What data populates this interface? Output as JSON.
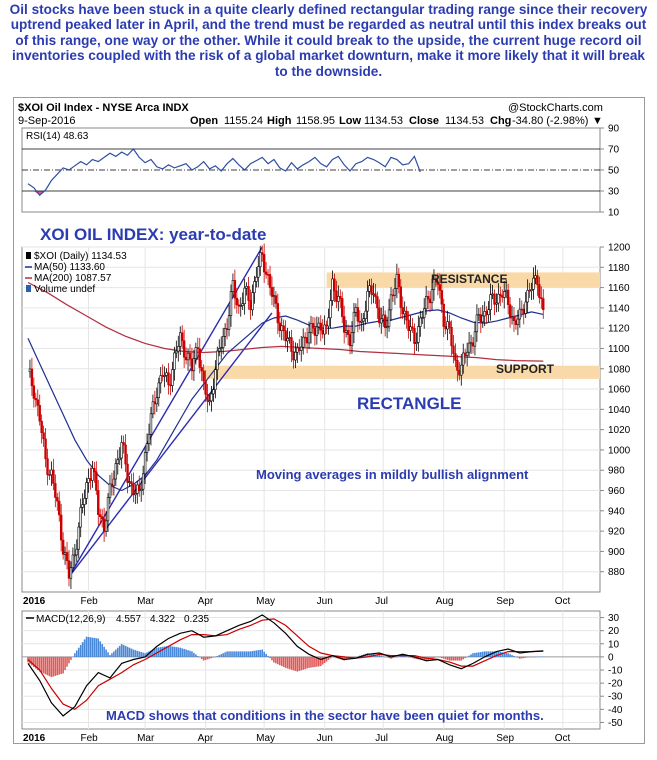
{
  "intro_text": "Oil stocks have been stuck in a quite clearly defined rectangular trading range since their recovery uptrend peaked later in April, and the trend must be regarded as neutral until this index breaks out of this range, one way or the other. While it could break to the upside, the current huge record oil inventories coupled with the risk of a global market downturn, make it more likely that it will break to the downside.",
  "header": {
    "symbol": "$XOI Oil Index - NYSE Arca INDX",
    "date": "9-Sep-2016",
    "open_label": "Open",
    "open": "1155.24",
    "high_label": "High",
    "high": "1158.95",
    "low_label": "Low",
    "low": "1134.53",
    "close_label": "Close",
    "close": "1134.53",
    "chg_label": "Chg",
    "chg": "-34.80 (-2.98%)",
    "source": "@StockCharts.com"
  },
  "colors": {
    "price_up": "#000000",
    "price_down": "#cc0000",
    "ma50": "#1f2f8f",
    "ma200": "#b03040",
    "rsi": "#2f4f9f",
    "macd": "#000000",
    "signal": "#cc0000",
    "hist_pos": "#4a88d8",
    "hist_neg": "#e05a5a",
    "band": "#f9d9a8",
    "channel": "#2b2bb0"
  },
  "chart_data": [
    {
      "panel": "rsi",
      "type": "line",
      "legend": "RSI(14) 48.63",
      "ylim": [
        10,
        90
      ],
      "yticks": [
        10,
        30,
        50,
        70,
        90
      ],
      "reference_lines": [
        30,
        50,
        70
      ],
      "points": [
        [
          0,
          37
        ],
        [
          3,
          33
        ],
        [
          6,
          26
        ],
        [
          9,
          31
        ],
        [
          12,
          40
        ],
        [
          15,
          46
        ],
        [
          18,
          52
        ],
        [
          21,
          50
        ],
        [
          24,
          54
        ],
        [
          27,
          58
        ],
        [
          30,
          55
        ],
        [
          33,
          60
        ],
        [
          36,
          58
        ],
        [
          39,
          62
        ],
        [
          42,
          66
        ],
        [
          45,
          63
        ],
        [
          48,
          67
        ],
        [
          51,
          64
        ],
        [
          54,
          70
        ],
        [
          57,
          62
        ],
        [
          60,
          57
        ],
        [
          63,
          60
        ],
        [
          66,
          53
        ],
        [
          69,
          51
        ],
        [
          72,
          55
        ],
        [
          75,
          52
        ],
        [
          78,
          54
        ],
        [
          81,
          56
        ],
        [
          84,
          50
        ],
        [
          87,
          53
        ],
        [
          90,
          58
        ],
        [
          93,
          51
        ],
        [
          96,
          54
        ],
        [
          99,
          49
        ],
        [
          102,
          56
        ],
        [
          105,
          61
        ],
        [
          108,
          55
        ],
        [
          111,
          50
        ],
        [
          114,
          56
        ],
        [
          117,
          59
        ],
        [
          120,
          62
        ],
        [
          123,
          56
        ],
        [
          126,
          60
        ],
        [
          129,
          52
        ],
        [
          132,
          49
        ],
        [
          135,
          57
        ],
        [
          138,
          51
        ],
        [
          141,
          55
        ],
        [
          144,
          58
        ],
        [
          147,
          62
        ],
        [
          150,
          56
        ],
        [
          153,
          53
        ],
        [
          156,
          60
        ],
        [
          159,
          63
        ],
        [
          162,
          55
        ],
        [
          165,
          49
        ],
        [
          168,
          56
        ],
        [
          171,
          58
        ],
        [
          174,
          62
        ],
        [
          177,
          60
        ],
        [
          180,
          57
        ],
        [
          183,
          53
        ],
        [
          186,
          62
        ],
        [
          189,
          60
        ],
        [
          192,
          55
        ],
        [
          195,
          56
        ],
        [
          198,
          63
        ],
        [
          201,
          48
        ]
      ]
    },
    {
      "panel": "price",
      "type": "candlestick",
      "title": "XOI OIL INDEX: year-to-date",
      "legend": [
        "$XOI (Daily) 1134.53",
        "MA(50) 1133.60",
        "MA(200) 1087.57",
        "Volume undef"
      ],
      "ylim": [
        860,
        1200
      ],
      "yticks": [
        880,
        900,
        920,
        940,
        960,
        980,
        1000,
        1020,
        1040,
        1060,
        1080,
        1100,
        1120,
        1140,
        1160,
        1180,
        1200
      ],
      "x_axis": {
        "start_label": "2016",
        "months": [
          {
            "label": "Feb",
            "day": 31
          },
          {
            "label": "Mar",
            "day": 60
          },
          {
            "label": "Apr",
            "day": 91
          },
          {
            "label": "May",
            "day": 121
          },
          {
            "label": "Jun",
            "day": 152
          },
          {
            "label": "Jul",
            "day": 182
          },
          {
            "label": "Aug",
            "day": 213
          },
          {
            "label": "Sep",
            "day": 244
          },
          {
            "label": "Oct",
            "day": 274
          }
        ],
        "end_day": 290
      },
      "close_series": [
        [
          0,
          1077
        ],
        [
          3,
          1060
        ],
        [
          6,
          1030
        ],
        [
          9,
          990
        ],
        [
          12,
          975
        ],
        [
          15,
          945
        ],
        [
          18,
          905
        ],
        [
          21,
          875
        ],
        [
          24,
          900
        ],
        [
          27,
          935
        ],
        [
          30,
          965
        ],
        [
          33,
          985
        ],
        [
          36,
          940
        ],
        [
          39,
          925
        ],
        [
          42,
          958
        ],
        [
          45,
          985
        ],
        [
          48,
          1005
        ],
        [
          51,
          975
        ],
        [
          54,
          960
        ],
        [
          57,
          955
        ],
        [
          60,
          995
        ],
        [
          63,
          1030
        ],
        [
          66,
          1060
        ],
        [
          69,
          1075
        ],
        [
          72,
          1065
        ],
        [
          75,
          1090
        ],
        [
          78,
          1110
        ],
        [
          81,
          1095
        ],
        [
          84,
          1080
        ],
        [
          87,
          1105
        ],
        [
          90,
          1060
        ],
        [
          93,
          1045
        ],
        [
          96,
          1080
        ],
        [
          99,
          1105
        ],
        [
          102,
          1125
        ],
        [
          105,
          1160
        ],
        [
          108,
          1140
        ],
        [
          111,
          1155
        ],
        [
          114,
          1145
        ],
        [
          117,
          1175
        ],
        [
          120,
          1190
        ],
        [
          123,
          1170
        ],
        [
          126,
          1145
        ],
        [
          129,
          1125
        ],
        [
          132,
          1110
        ],
        [
          135,
          1100
        ],
        [
          138,
          1095
        ],
        [
          141,
          1105
        ],
        [
          144,
          1120
        ],
        [
          147,
          1115
        ],
        [
          150,
          1125
        ],
        [
          153,
          1115
        ],
        [
          156,
          1165
        ],
        [
          159,
          1150
        ],
        [
          162,
          1120
        ],
        [
          165,
          1110
        ],
        [
          168,
          1135
        ],
        [
          171,
          1125
        ],
        [
          174,
          1150
        ],
        [
          177,
          1160
        ],
        [
          180,
          1130
        ],
        [
          183,
          1120
        ],
        [
          186,
          1150
        ],
        [
          189,
          1165
        ],
        [
          192,
          1140
        ],
        [
          195,
          1120
        ],
        [
          198,
          1110
        ],
        [
          201,
          1125
        ],
        [
          204,
          1145
        ],
        [
          207,
          1160
        ],
        [
          210,
          1165
        ],
        [
          213,
          1130
        ],
        [
          216,
          1115
        ],
        [
          219,
          1085
        ],
        [
          222,
          1080
        ],
        [
          225,
          1100
        ],
        [
          228,
          1110
        ],
        [
          231,
          1130
        ],
        [
          234,
          1135
        ],
        [
          237,
          1145
        ],
        [
          240,
          1150
        ],
        [
          243,
          1155
        ],
        [
          246,
          1145
        ],
        [
          249,
          1125
        ],
        [
          252,
          1130
        ],
        [
          255,
          1150
        ],
        [
          258,
          1160
        ],
        [
          261,
          1170
        ],
        [
          264,
          1134
        ]
      ],
      "ma50": [
        [
          0,
          1110
        ],
        [
          6,
          1085
        ],
        [
          12,
          1060
        ],
        [
          18,
          1035
        ],
        [
          24,
          1010
        ],
        [
          30,
          990
        ],
        [
          36,
          975
        ],
        [
          42,
          965
        ],
        [
          48,
          960
        ],
        [
          54,
          966
        ],
        [
          60,
          975
        ],
        [
          66,
          990
        ],
        [
          72,
          1010
        ],
        [
          78,
          1030
        ],
        [
          84,
          1050
        ],
        [
          90,
          1065
        ],
        [
          96,
          1080
        ],
        [
          102,
          1095
        ],
        [
          108,
          1105
        ],
        [
          114,
          1115
        ],
        [
          120,
          1125
        ],
        [
          126,
          1130
        ],
        [
          132,
          1132
        ],
        [
          138,
          1128
        ],
        [
          144,
          1123
        ],
        [
          150,
          1120
        ],
        [
          156,
          1120
        ],
        [
          162,
          1122
        ],
        [
          168,
          1122
        ],
        [
          174,
          1125
        ],
        [
          180,
          1127
        ],
        [
          186,
          1128
        ],
        [
          192,
          1131
        ],
        [
          198,
          1134
        ],
        [
          204,
          1137
        ],
        [
          210,
          1138
        ],
        [
          216,
          1135
        ],
        [
          222,
          1130
        ],
        [
          228,
          1126
        ],
        [
          234,
          1125
        ],
        [
          240,
          1127
        ],
        [
          246,
          1130
        ],
        [
          252,
          1133
        ],
        [
          258,
          1136
        ],
        [
          264,
          1133.6
        ]
      ],
      "ma200": [
        [
          0,
          1165
        ],
        [
          10,
          1155
        ],
        [
          20,
          1143
        ],
        [
          30,
          1132
        ],
        [
          40,
          1121
        ],
        [
          50,
          1112
        ],
        [
          60,
          1105
        ],
        [
          70,
          1100
        ],
        [
          80,
          1097
        ],
        [
          90,
          1096
        ],
        [
          100,
          1097
        ],
        [
          110,
          1099
        ],
        [
          120,
          1101
        ],
        [
          130,
          1102
        ],
        [
          140,
          1101
        ],
        [
          150,
          1100
        ],
        [
          160,
          1099
        ],
        [
          170,
          1097
        ],
        [
          180,
          1096
        ],
        [
          190,
          1095
        ],
        [
          200,
          1094
        ],
        [
          210,
          1093
        ],
        [
          220,
          1092
        ],
        [
          230,
          1091
        ],
        [
          240,
          1089
        ],
        [
          250,
          1088
        ],
        [
          264,
          1087.6
        ]
      ],
      "bands": [
        {
          "label": "RESISTANCE",
          "from": 1160,
          "to": 1175,
          "x0": 153,
          "x1": 290
        },
        {
          "label": "SUPPORT",
          "from": 1070,
          "to": 1083,
          "x0": 90,
          "x1": 290
        }
      ],
      "channel": [
        {
          "from": [
            21,
            875
          ],
          "to": [
            120,
            1200
          ]
        },
        {
          "from": [
            21,
            875
          ],
          "to": [
            125,
            1135
          ]
        }
      ],
      "annotations": [
        "RECTANGLE",
        "Moving averages in mildly bullish alignment"
      ]
    },
    {
      "panel": "macd",
      "type": "line",
      "legend_label": "MACD(12,26,9)",
      "legend_values": [
        "4.557",
        "4.322",
        "0.235"
      ],
      "ylim": [
        -55,
        35
      ],
      "yticks": [
        -50,
        -40,
        -30,
        -20,
        -10,
        0,
        10,
        20,
        30
      ],
      "macd": [
        [
          0,
          -5
        ],
        [
          6,
          -18
        ],
        [
          12,
          -35
        ],
        [
          18,
          -45
        ],
        [
          24,
          -38
        ],
        [
          30,
          -22
        ],
        [
          36,
          -12
        ],
        [
          42,
          -16
        ],
        [
          48,
          -5
        ],
        [
          54,
          -2
        ],
        [
          60,
          0
        ],
        [
          66,
          8
        ],
        [
          72,
          14
        ],
        [
          78,
          18
        ],
        [
          84,
          20
        ],
        [
          90,
          15
        ],
        [
          96,
          16
        ],
        [
          102,
          20
        ],
        [
          108,
          24
        ],
        [
          114,
          27
        ],
        [
          120,
          32
        ],
        [
          126,
          26
        ],
        [
          132,
          18
        ],
        [
          138,
          8
        ],
        [
          144,
          2
        ],
        [
          150,
          -2
        ],
        [
          156,
          1
        ],
        [
          162,
          -2
        ],
        [
          168,
          -1
        ],
        [
          174,
          2
        ],
        [
          180,
          3
        ],
        [
          186,
          0
        ],
        [
          192,
          2
        ],
        [
          198,
          0
        ],
        [
          204,
          -3
        ],
        [
          210,
          -2
        ],
        [
          216,
          -6
        ],
        [
          222,
          -9
        ],
        [
          228,
          -5
        ],
        [
          234,
          0
        ],
        [
          240,
          4
        ],
        [
          246,
          6
        ],
        [
          252,
          3
        ],
        [
          258,
          4
        ],
        [
          264,
          4.557
        ]
      ],
      "signal": [
        [
          0,
          -2
        ],
        [
          6,
          -10
        ],
        [
          12,
          -24
        ],
        [
          18,
          -36
        ],
        [
          24,
          -40
        ],
        [
          30,
          -33
        ],
        [
          36,
          -22
        ],
        [
          42,
          -17
        ],
        [
          48,
          -12
        ],
        [
          54,
          -6
        ],
        [
          60,
          -2
        ],
        [
          66,
          3
        ],
        [
          72,
          8
        ],
        [
          78,
          13
        ],
        [
          84,
          17
        ],
        [
          90,
          17
        ],
        [
          96,
          16
        ],
        [
          102,
          17
        ],
        [
          108,
          21
        ],
        [
          114,
          24
        ],
        [
          120,
          28
        ],
        [
          126,
          29
        ],
        [
          132,
          24
        ],
        [
          138,
          16
        ],
        [
          144,
          8
        ],
        [
          150,
          3
        ],
        [
          156,
          1
        ],
        [
          162,
          0
        ],
        [
          168,
          -1
        ],
        [
          174,
          0
        ],
        [
          180,
          2
        ],
        [
          186,
          1
        ],
        [
          192,
          1
        ],
        [
          198,
          1
        ],
        [
          204,
          -1
        ],
        [
          210,
          -2
        ],
        [
          216,
          -4
        ],
        [
          222,
          -7
        ],
        [
          228,
          -7
        ],
        [
          234,
          -3
        ],
        [
          240,
          1
        ],
        [
          246,
          4
        ],
        [
          252,
          4
        ],
        [
          258,
          4
        ],
        [
          264,
          4.322
        ]
      ],
      "annotations": [
        "MACD shows that conditions in the sector have been quiet for months."
      ]
    }
  ]
}
